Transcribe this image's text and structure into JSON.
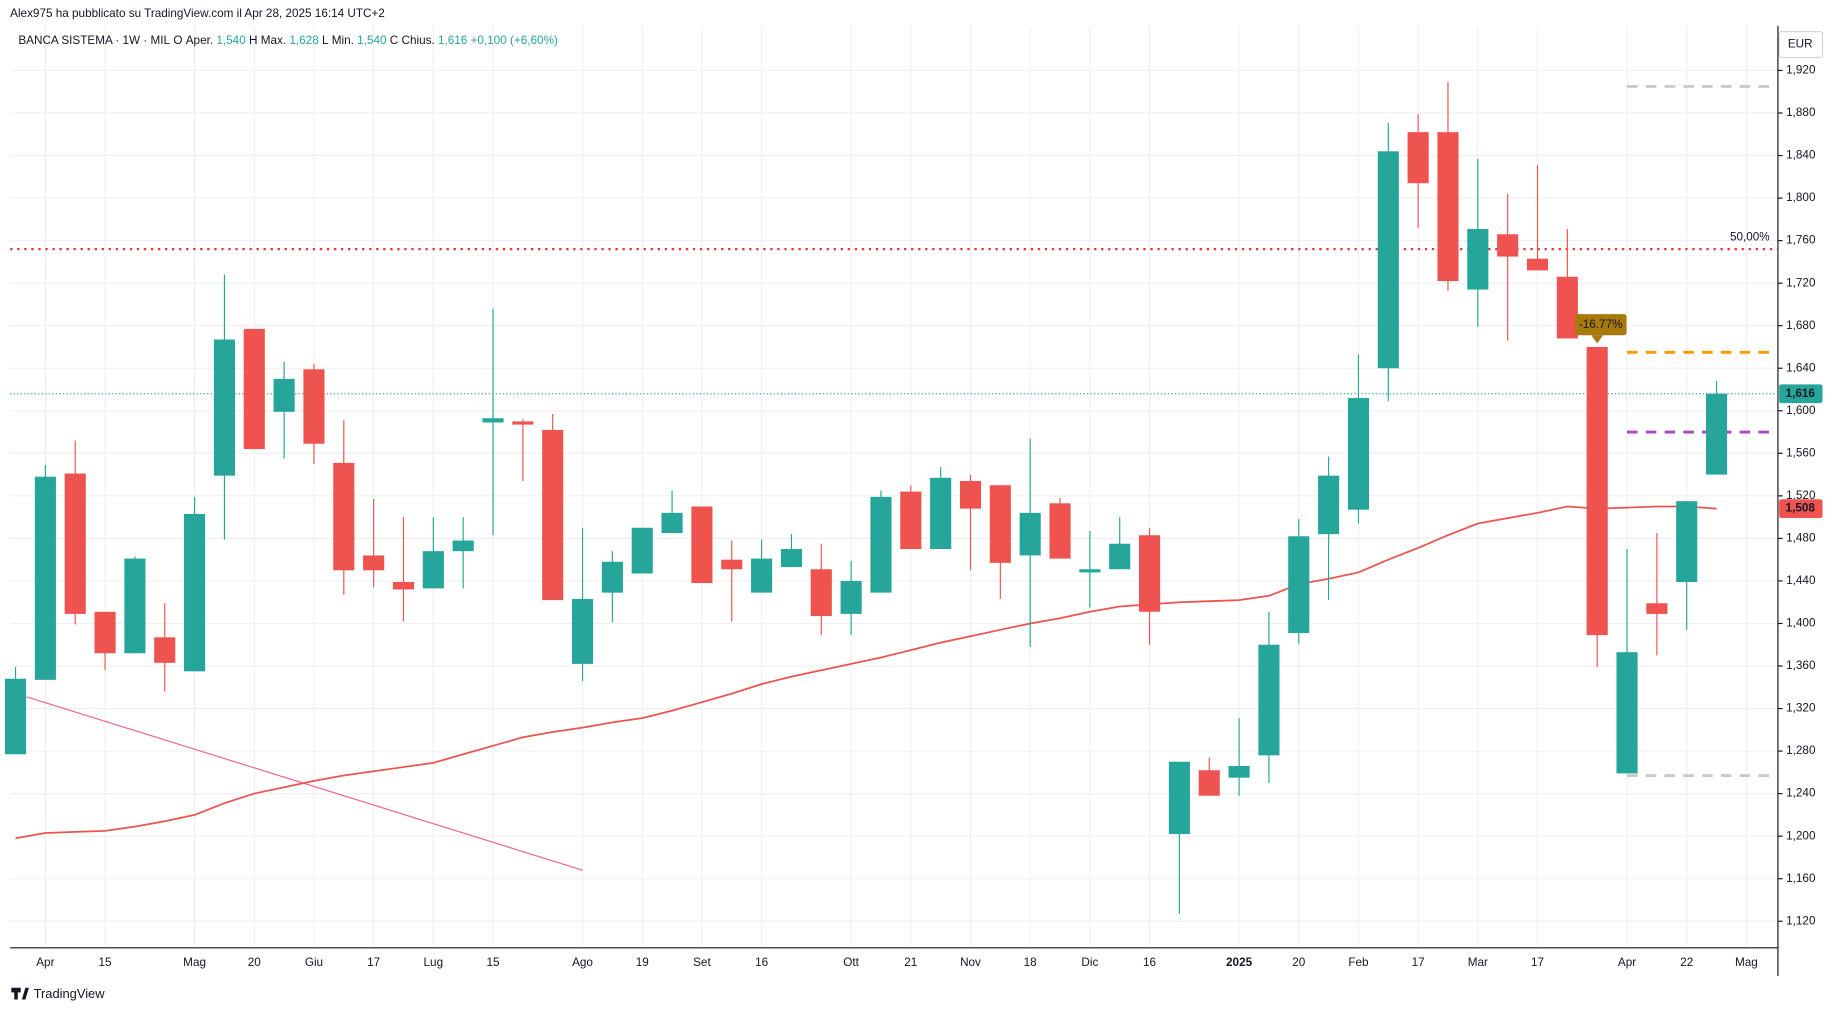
{
  "header": {
    "published": "Alex975 ha pubblicato su TradingView.com il Apr 28, 2025 16:14 UTC+2",
    "brand": "TradingView",
    "currency": "EUR"
  },
  "legend": {
    "symbol": "BANCA SISTEMA · 1W · MIL",
    "items": [
      {
        "key": "O",
        "label": "Aper.",
        "value": "1,540"
      },
      {
        "key": "H",
        "label": "Max.",
        "value": "1,628"
      },
      {
        "key": "L",
        "label": "Min.",
        "value": "1,540"
      },
      {
        "key": "C",
        "label": "Chius.",
        "value": "1,616"
      }
    ],
    "change": "+0,100 (+6,60%)"
  },
  "chart_data": {
    "type": "candlestick",
    "up_color": "#26a69a",
    "down_color": "#ef5350",
    "categories": [
      null,
      "Apr",
      null,
      "15",
      null,
      null,
      "Mag",
      null,
      "20",
      null,
      "Giu",
      null,
      "17",
      null,
      "Lug",
      null,
      "15",
      null,
      null,
      "Ago",
      null,
      "19",
      null,
      "Set",
      null,
      "16",
      null,
      null,
      "Ott",
      null,
      "21",
      null,
      "Nov",
      null,
      "18",
      null,
      "Dic",
      null,
      "16",
      null,
      null,
      "2025",
      null,
      "20",
      null,
      "Feb",
      null,
      "17",
      null,
      "Mar",
      null,
      "17",
      null,
      null,
      "Apr",
      null,
      "22",
      null,
      "Mag"
    ],
    "open": [
      1.277,
      1.347,
      1.541,
      1.411,
      1.372,
      1.387,
      1.355,
      1.539,
      1.677,
      1.599,
      1.639,
      1.551,
      1.464,
      1.439,
      1.433,
      1.468,
      1.589,
      1.59,
      1.582,
      1.362,
      1.429,
      1.447,
      1.485,
      1.51,
      1.46,
      1.429,
      1.453,
      1.451,
      1.409,
      1.429,
      1.524,
      1.47,
      1.534,
      1.53,
      1.464,
      1.513,
      1.448,
      1.451,
      1.483,
      1.202,
      1.262,
      1.255,
      1.276,
      1.391,
      1.484,
      1.507,
      1.64,
      1.862,
      1.862,
      1.714,
      1.766,
      1.743,
      1.726,
      1.66,
      1.259,
      1.419,
      1.439,
      1.54,
      null
    ],
    "high": [
      1.359,
      1.549,
      1.572,
      1.411,
      1.463,
      1.419,
      1.519,
      1.728,
      1.677,
      1.646,
      1.644,
      1.591,
      1.517,
      1.5,
      1.5,
      1.5,
      1.696,
      1.592,
      1.597,
      1.49,
      1.468,
      1.49,
      1.525,
      1.51,
      1.478,
      1.479,
      1.484,
      1.475,
      1.459,
      1.525,
      1.53,
      1.547,
      1.54,
      1.53,
      1.574,
      1.518,
      1.487,
      1.5,
      1.49,
      1.27,
      1.274,
      1.311,
      1.411,
      1.498,
      1.557,
      1.653,
      1.871,
      1.879,
      1.909,
      1.837,
      1.804,
      1.831,
      1.771,
      1.66,
      1.47,
      1.485,
      1.515,
      1.628,
      null
    ],
    "low": [
      1.277,
      1.347,
      1.399,
      1.356,
      1.372,
      1.336,
      1.355,
      1.479,
      1.564,
      1.555,
      1.55,
      1.427,
      1.434,
      1.402,
      1.433,
      1.433,
      1.483,
      1.534,
      1.422,
      1.346,
      1.401,
      1.447,
      1.485,
      1.438,
      1.402,
      1.429,
      1.453,
      1.389,
      1.389,
      1.429,
      1.47,
      1.47,
      1.45,
      1.423,
      1.378,
      1.461,
      1.415,
      1.451,
      1.38,
      1.127,
      1.238,
      1.238,
      1.25,
      1.381,
      1.422,
      1.494,
      1.609,
      1.772,
      1.713,
      1.679,
      1.666,
      1.732,
      1.668,
      1.359,
      1.259,
      1.37,
      1.394,
      1.54,
      null
    ],
    "close": [
      1.348,
      1.538,
      1.409,
      1.372,
      1.461,
      1.363,
      1.503,
      1.667,
      1.564,
      1.63,
      1.569,
      1.45,
      1.45,
      1.432,
      1.468,
      1.478,
      1.593,
      1.587,
      1.422,
      1.423,
      1.458,
      1.49,
      1.504,
      1.438,
      1.451,
      1.461,
      1.47,
      1.407,
      1.44,
      1.519,
      1.47,
      1.537,
      1.508,
      1.457,
      1.504,
      1.461,
      1.451,
      1.475,
      1.411,
      1.27,
      1.238,
      1.266,
      1.38,
      1.482,
      1.539,
      1.612,
      1.844,
      1.814,
      1.722,
      1.771,
      1.745,
      1.732,
      1.668,
      1.389,
      1.373,
      1.409,
      1.515,
      1.616,
      null
    ],
    "moving_average": {
      "color": "#ef5350",
      "values": [
        1.198,
        1.203,
        1.204,
        1.205,
        1.209,
        1.214,
        1.22,
        1.231,
        1.24,
        1.246,
        1.252,
        1.257,
        1.261,
        1.265,
        1.269,
        1.277,
        1.285,
        1.293,
        1.298,
        1.302,
        1.307,
        1.311,
        1.318,
        1.326,
        1.334,
        1.343,
        1.35,
        1.356,
        1.362,
        1.368,
        1.375,
        1.382,
        1.388,
        1.394,
        1.4,
        1.405,
        1.411,
        1.416,
        1.418,
        1.42,
        1.421,
        1.422,
        1.426,
        1.437,
        1.442,
        1.448,
        1.46,
        1.471,
        1.483,
        1.494,
        1.499,
        1.504,
        1.51,
        1.508,
        1.509,
        1.51,
        1.51,
        1.508,
        null
      ],
      "last": {
        "value": 1.508,
        "label": "1,508"
      }
    },
    "last_price": {
      "value": 1.616,
      "label": "1,616",
      "color": "#26a69a"
    },
    "ylim": [
      1.095,
      1.962
    ],
    "yticks": [
      {
        "value": 1.12,
        "label": "1,120"
      },
      {
        "value": 1.16,
        "label": "1,160"
      },
      {
        "value": 1.2,
        "label": "1,200"
      },
      {
        "value": 1.24,
        "label": "1,240"
      },
      {
        "value": 1.28,
        "label": "1,280"
      },
      {
        "value": 1.32,
        "label": "1,320"
      },
      {
        "value": 1.36,
        "label": "1,360"
      },
      {
        "value": 1.4,
        "label": "1,400"
      },
      {
        "value": 1.44,
        "label": "1,440"
      },
      {
        "value": 1.48,
        "label": "1,480"
      },
      {
        "value": 1.52,
        "label": "1,520"
      },
      {
        "value": 1.56,
        "label": "1,560"
      },
      {
        "value": 1.6,
        "label": "1,600"
      },
      {
        "value": 1.64,
        "label": "1,640"
      },
      {
        "value": 1.68,
        "label": "1,680"
      },
      {
        "value": 1.72,
        "label": "1,720"
      },
      {
        "value": 1.76,
        "label": "1,760"
      },
      {
        "value": 1.8,
        "label": "1,800"
      },
      {
        "value": 1.84,
        "label": "1,840"
      },
      {
        "value": 1.88,
        "label": "1,880"
      },
      {
        "value": 1.92,
        "label": "1,920"
      }
    ],
    "grid": true,
    "fib_line": {
      "value": 1.752,
      "label": "50,00%",
      "color": "#e53935"
    },
    "change_badge": {
      "label": "-16.77%",
      "at": 53,
      "value": 1.66,
      "color": "#a8790d"
    },
    "levels": [
      {
        "value": 1.905,
        "color": "#c9c9c9"
      },
      {
        "value": 1.655,
        "color": "#ff9800"
      },
      {
        "value": 1.58,
        "color": "#ab47bc"
      },
      {
        "value": 1.257,
        "color": "#c9c9c9"
      }
    ],
    "levels_from": 54,
    "trendline": {
      "x": [
        0.37,
        19
      ],
      "y": [
        1.331,
        1.168
      ],
      "color": "#f06292"
    }
  }
}
